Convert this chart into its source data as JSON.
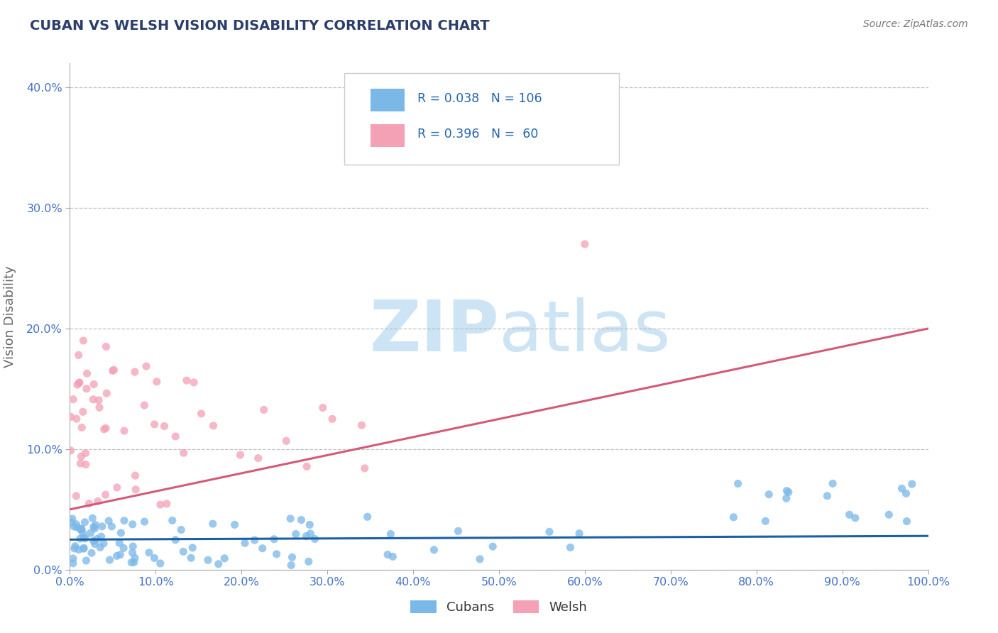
{
  "title": "CUBAN VS WELSH VISION DISABILITY CORRELATION CHART",
  "source": "Source: ZipAtlas.com",
  "ylabel": "Vision Disability",
  "xlabel": "",
  "xlim": [
    0,
    100
  ],
  "ylim": [
    0,
    42
  ],
  "yticks": [
    0,
    10,
    20,
    30,
    40
  ],
  "xticks": [
    0,
    10,
    20,
    30,
    40,
    50,
    60,
    70,
    80,
    90,
    100
  ],
  "cubans_R": 0.038,
  "cubans_N": 106,
  "welsh_R": 0.396,
  "welsh_N": 60,
  "blue_color": "#7ab8e8",
  "pink_color": "#f4a0b5",
  "blue_line_color": "#1a5fa8",
  "pink_line_color": "#d45a78",
  "title_color": "#2c3e6b",
  "axis_color": "#4472c4",
  "text_color": "#2166ac",
  "watermark_color": "#cce4f4",
  "blue_line_y0": 2.5,
  "blue_line_y1": 2.8,
  "pink_line_y0": 5.0,
  "pink_line_y1": 20.0
}
